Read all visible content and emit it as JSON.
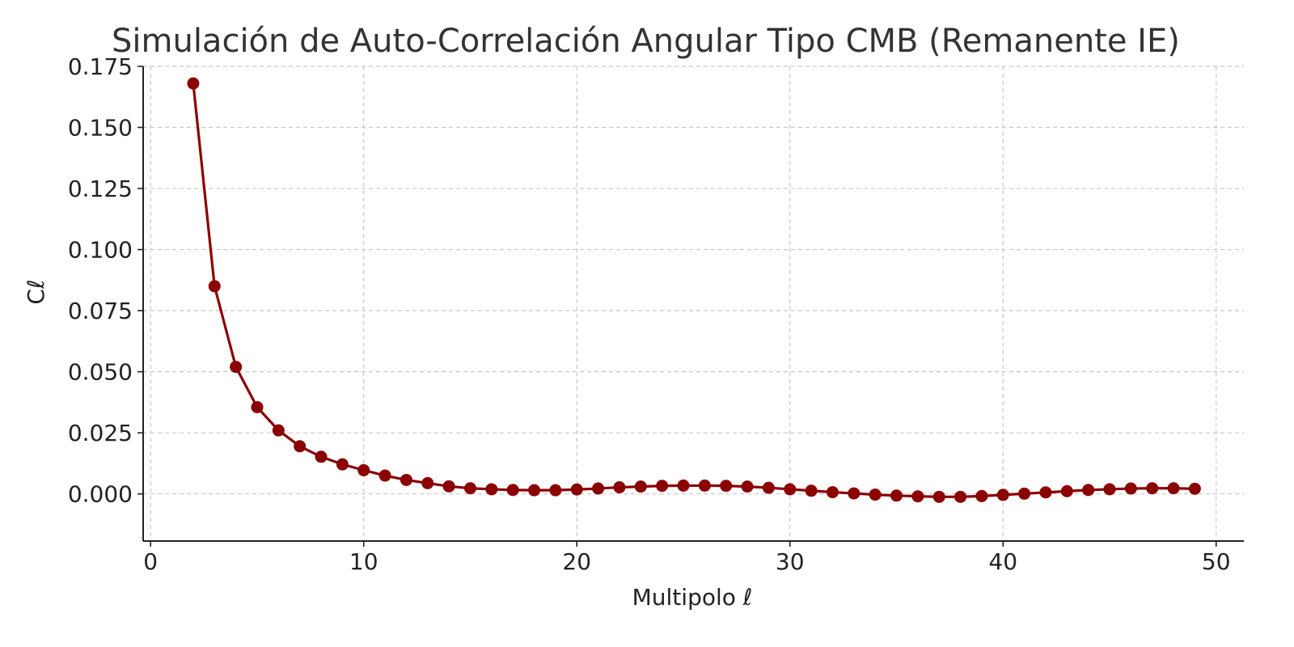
{
  "chart_data": {
    "type": "line",
    "title": "Simulación de Auto-Correlación Angular Tipo CMB (Remanente IE)",
    "xlabel": "Multipolo ℓ",
    "ylabel": "Cℓ",
    "xlim": [
      -0.35,
      51.3
    ],
    "ylim": [
      -0.0193,
      0.175
    ],
    "xticks": [
      0,
      10,
      20,
      30,
      40,
      50
    ],
    "xtick_labels": [
      "0",
      "10",
      "20",
      "30",
      "40",
      "50"
    ],
    "yticks": [
      0.0,
      0.025,
      0.05,
      0.075,
      0.1,
      0.125,
      0.15,
      0.175
    ],
    "ytick_labels": [
      "0.000",
      "0.025",
      "0.050",
      "0.075",
      "0.100",
      "0.125",
      "0.150",
      "0.175"
    ],
    "grid": true,
    "color": "#8b0000",
    "marker": "circle",
    "series": [
      {
        "x": [
          2,
          3,
          4,
          5,
          6,
          7,
          8,
          9,
          10,
          11,
          12,
          13,
          14,
          15,
          16,
          17,
          18,
          19,
          20,
          21,
          22,
          23,
          24,
          25,
          26,
          27,
          28,
          29,
          30,
          31,
          32,
          33,
          34,
          35,
          36,
          37,
          38,
          39,
          40,
          41,
          42,
          43,
          44,
          45,
          46,
          47,
          48,
          49
        ],
        "values": [
          0.168,
          0.085,
          0.052,
          0.0355,
          0.026,
          0.0195,
          0.0152,
          0.0121,
          0.0097,
          0.0075,
          0.0057,
          0.0044,
          0.0031,
          0.0023,
          0.0019,
          0.0016,
          0.0015,
          0.0015,
          0.0018,
          0.0022,
          0.0027,
          0.003,
          0.0033,
          0.0034,
          0.0034,
          0.0033,
          0.003,
          0.0025,
          0.0019,
          0.0013,
          0.0007,
          0.0002,
          -0.0003,
          -0.0007,
          -0.001,
          -0.0012,
          -0.0012,
          -0.0009,
          -0.0004,
          0.0001,
          0.0006,
          0.0011,
          0.0016,
          0.0019,
          0.0022,
          0.0023,
          0.0023,
          0.0021
        ]
      }
    ]
  }
}
